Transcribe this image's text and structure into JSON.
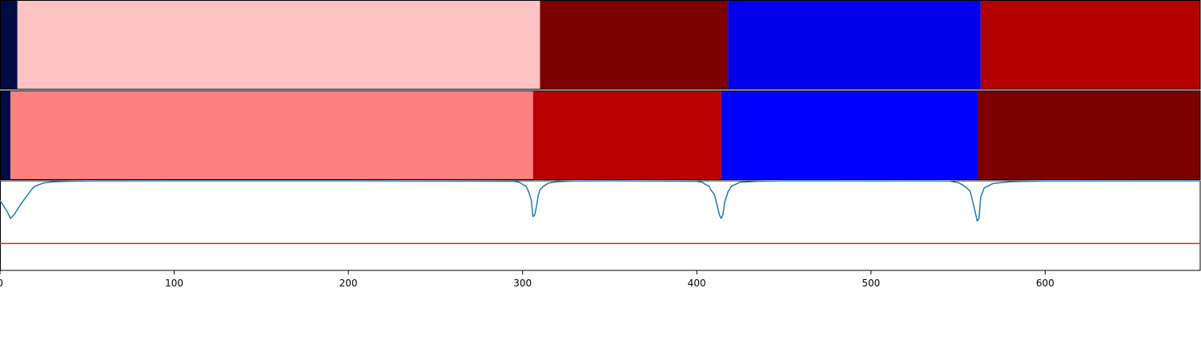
{
  "chart_data": {
    "type": "segmentation-comparison",
    "xlim": [
      0,
      689
    ],
    "x_ticks": [
      0,
      100,
      200,
      300,
      400,
      500,
      600
    ],
    "tick_labels": [
      "0",
      "100",
      "200",
      "300",
      "400",
      "500",
      "600"
    ],
    "xlabel": "",
    "ylabel": "",
    "title": "",
    "segment_bars": [
      {
        "segments": [
          {
            "start": 0,
            "end": 10,
            "color": "#000b46"
          },
          {
            "start": 10,
            "end": 310,
            "color": "#ffc3c3"
          },
          {
            "start": 310,
            "end": 418,
            "color": "#7c0000"
          },
          {
            "start": 418,
            "end": 563,
            "color": "#0000ea"
          },
          {
            "start": 563,
            "end": 689,
            "color": "#b50000"
          }
        ]
      },
      {
        "segments": [
          {
            "start": 0,
            "end": 6,
            "color": "#000b46"
          },
          {
            "start": 6,
            "end": 306,
            "color": "#ff8080"
          },
          {
            "start": 306,
            "end": 414,
            "color": "#bb0000"
          },
          {
            "start": 414,
            "end": 561,
            "color": "#0000ff"
          },
          {
            "start": 561,
            "end": 689,
            "color": "#7c0000"
          }
        ]
      }
    ],
    "line_panel": {
      "ylim": [
        0,
        1
      ],
      "threshold": 0.3,
      "threshold_color": "#d62728",
      "line_color": "#1f77b4",
      "series": {
        "x": [
          0,
          2,
          4,
          5,
          6,
          7,
          8,
          10,
          12,
          15,
          18,
          20,
          25,
          30,
          40,
          50,
          100,
          200,
          295,
          298,
          300,
          302,
          303,
          304,
          305,
          306,
          307,
          308,
          309,
          310,
          312,
          315,
          320,
          330,
          350,
          400,
          403,
          405,
          407,
          408,
          410,
          411,
          412,
          413,
          414,
          415,
          416,
          418,
          420,
          425,
          435,
          450,
          545,
          550,
          553,
          555,
          557,
          558,
          559,
          560,
          561,
          562,
          563,
          565,
          570,
          580,
          600,
          689
        ],
        "y": [
          0.78,
          0.72,
          0.66,
          0.62,
          0.58,
          0.6,
          0.62,
          0.68,
          0.74,
          0.82,
          0.9,
          0.94,
          0.975,
          0.988,
          0.995,
          0.998,
          1.0,
          1.0,
          0.995,
          0.985,
          0.96,
          0.94,
          0.9,
          0.85,
          0.78,
          0.6,
          0.62,
          0.72,
          0.84,
          0.9,
          0.94,
          0.975,
          0.99,
          0.998,
          1.0,
          0.995,
          0.985,
          0.96,
          0.94,
          0.9,
          0.85,
          0.78,
          0.7,
          0.62,
          0.58,
          0.62,
          0.76,
          0.88,
          0.94,
          0.985,
          0.995,
          1.0,
          0.998,
          0.98,
          0.95,
          0.92,
          0.88,
          0.8,
          0.72,
          0.64,
          0.55,
          0.58,
          0.82,
          0.92,
          0.97,
          0.99,
          0.998,
          1.0
        ]
      }
    }
  }
}
